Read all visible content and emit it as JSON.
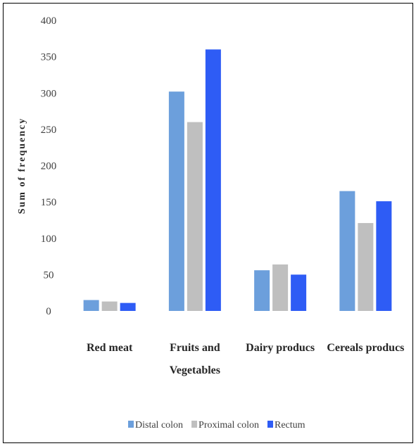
{
  "chart_data": {
    "type": "bar",
    "title": "",
    "xlabel": "",
    "ylabel": "Sum of frequency",
    "ylim": [
      0,
      400
    ],
    "yticks": [
      0,
      50,
      100,
      150,
      200,
      250,
      300,
      350,
      400
    ],
    "grid": false,
    "legend_position": "bottom",
    "categories": [
      [
        "Red meat"
      ],
      [
        "Fruits and",
        "Vegetables"
      ],
      [
        "Dairy producs"
      ],
      [
        "Cereals producs"
      ]
    ],
    "category_names": [
      "Red meat",
      "Fruits and Vegetables",
      "Dairy producs",
      "Cereals producs"
    ],
    "series": [
      {
        "name": "Distal colon",
        "color": "#6c9fdc",
        "values": [
          15,
          302,
          56,
          165
        ]
      },
      {
        "name": "Proximal colon",
        "color": "#bfbfbf",
        "values": [
          13,
          260,
          64,
          121
        ]
      },
      {
        "name": "Rectum",
        "color": "#2e5cf5",
        "values": [
          11,
          360,
          50,
          151
        ]
      }
    ]
  }
}
